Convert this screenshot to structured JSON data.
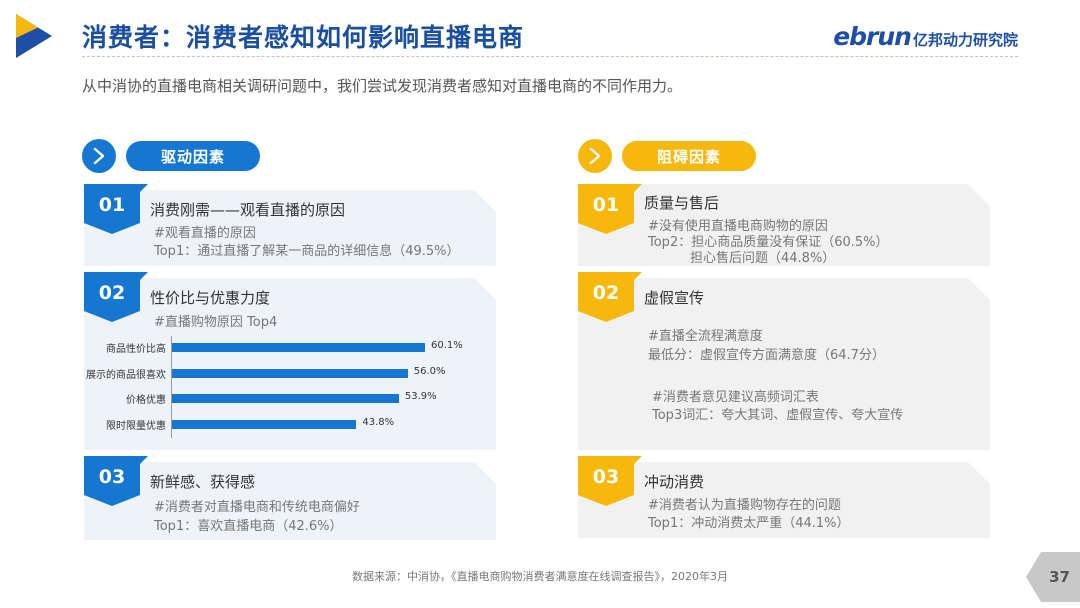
{
  "header": {
    "title": "消费者：消费者感知如何影响直播电商",
    "brand_main": "ebrun",
    "brand_sub": "亿邦动力研究院",
    "subtitle": "从中消协的直播电商相关调研问题中，我们尝试发现消费者感知对直播电商的不同作用力。"
  },
  "colors": {
    "blue": "#1677d2",
    "yellow": "#f6b80c",
    "title": "#1a4fa0"
  },
  "icons": {
    "logo": "play-triangle-logo",
    "chevron": "chevron-right-icon"
  },
  "drivers": {
    "heading": "驱动因素",
    "cards": [
      {
        "num": "01",
        "title": "消费刚需——观看直播的原因",
        "lines": [
          "#观看直播的原因",
          "Top1：通过直播了解某一商品的详细信息（49.5%）"
        ]
      },
      {
        "num": "02",
        "title": "性价比与优惠力度",
        "lines": [
          "#直播购物原因 Top4"
        ]
      },
      {
        "num": "03",
        "title": "新鲜感、获得感",
        "lines": [
          "#消费者对直播电商和传统电商偏好",
          "Top1：喜欢直播电商（42.6%）"
        ]
      }
    ]
  },
  "barriers": {
    "heading": "阻碍因素",
    "cards": [
      {
        "num": "01",
        "title": "质量与售后",
        "lines": [
          "#没有使用直播电商购物的原因",
          "Top2：担心商品质量没有保证（60.5%）",
          "担心售后问题（44.8%）"
        ]
      },
      {
        "num": "02",
        "title": "虚假宣传",
        "lines": [
          "#直播全流程满意度",
          "最低分：虚假宣传方面满意度（64.7分）",
          "#消费者意见建议高频词汇表",
          "Top3词汇：夸大其词、虚假宣传、夸大宣传"
        ]
      },
      {
        "num": "03",
        "title": "冲动消费",
        "lines": [
          "#消费者认为直播购物存在的问题",
          "Top1：冲动消费太严重（44.1%）"
        ]
      }
    ]
  },
  "chart_data": {
    "type": "bar",
    "orientation": "horizontal",
    "categories": [
      "商品性价比高",
      "展示的商品很喜欢",
      "价格优惠",
      "限时限量优惠"
    ],
    "values": [
      60.1,
      56.0,
      53.9,
      43.8
    ],
    "value_labels": [
      "60.1%",
      "56.0%",
      "53.9%",
      "43.8%"
    ],
    "unit": "%",
    "xlim": [
      0,
      70
    ],
    "grid": false,
    "legend": "none",
    "color": "#1677d2"
  },
  "footer": {
    "source": "数据来源：中消协，《直播电商购物消费者满意度在线调查报告》，2020年3月",
    "page": "37"
  }
}
